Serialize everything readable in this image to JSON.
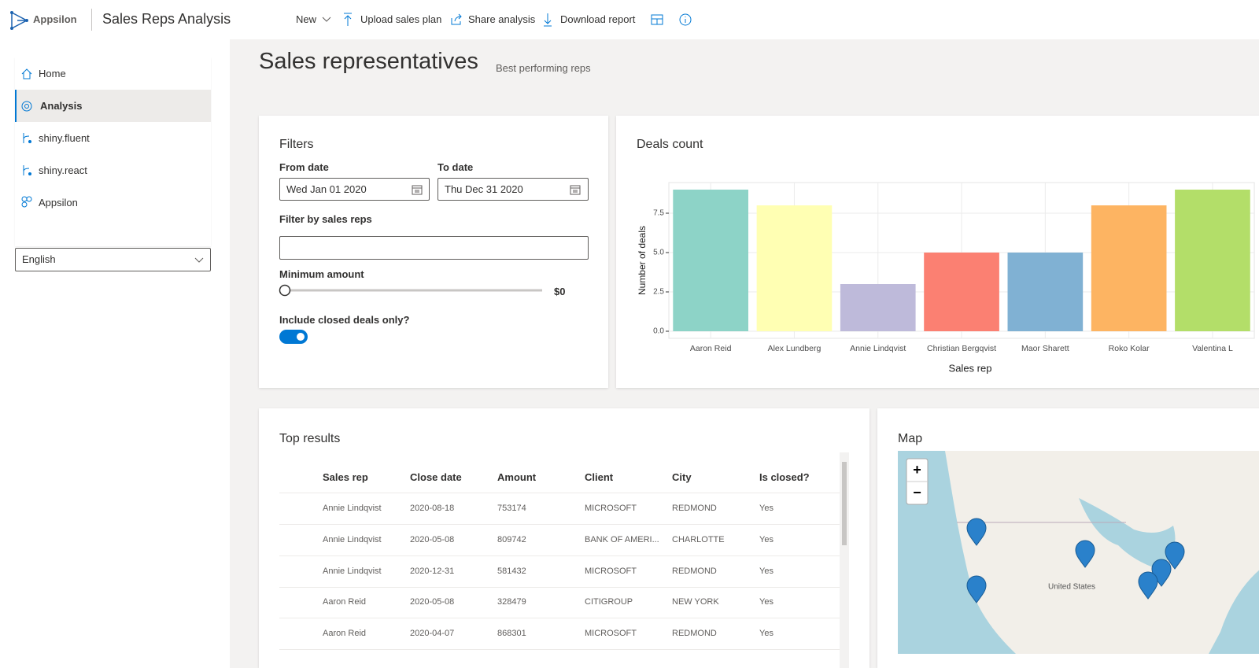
{
  "header": {
    "logo": "Appsilon",
    "title": "Sales Reps Analysis",
    "commands": [
      "New",
      "Upload sales plan",
      "Share analysis",
      "Download report"
    ]
  },
  "nav": {
    "items": [
      "Home",
      "Analysis",
      "shiny.fluent",
      "shiny.react",
      "Appsilon"
    ],
    "language": "English"
  },
  "page": {
    "title": "Sales representatives",
    "subtitle": "Best performing reps"
  },
  "filters": {
    "title": "Filters",
    "from_label": "From date",
    "from_value": "Wed Jan 01 2020",
    "to_label": "To date",
    "to_value": "Thu Dec 31 2020",
    "reps_label": "Filter by sales reps",
    "min_label": "Minimum amount",
    "min_value": "$0",
    "closed_label": "Include closed deals only?"
  },
  "chart_data": {
    "type": "bar",
    "title": "Deals count",
    "x_label": "Sales rep",
    "y_label": "Number of deals",
    "categories": [
      "Aaron Reid",
      "Alex Lundberg",
      "Annie Lindqvist",
      "Christian Bergqvist",
      "Maor Sharett",
      "Roko Kolar",
      "Valentina L"
    ],
    "values": [
      9,
      8,
      3,
      5,
      5,
      8,
      9
    ],
    "colors": [
      "#8dd3c7",
      "#ffffb3",
      "#bebada",
      "#fb8072",
      "#80b1d3",
      "#fdb462",
      "#b3de69"
    ],
    "ylim": [
      -0.45,
      9.45
    ],
    "yticks": [
      {
        "value": 0,
        "label": "0.0"
      },
      {
        "value": 2.5,
        "label": "2.5"
      },
      {
        "value": 5,
        "label": "5.0"
      },
      {
        "value": 7.5,
        "label": "7.5"
      }
    ],
    "grid": true
  },
  "table": {
    "title": "Top results",
    "columns": [
      "Sales rep",
      "Close date",
      "Amount",
      "Client",
      "City",
      "Is closed?"
    ],
    "rows": [
      [
        "Annie Lindqvist",
        "2020-08-18",
        "753174",
        "MICROSOFT",
        "REDMOND",
        "Yes"
      ],
      [
        "Annie Lindqvist",
        "2020-05-08",
        "809742",
        "BANK OF AMERI...",
        "CHARLOTTE",
        "Yes"
      ],
      [
        "Annie Lindqvist",
        "2020-12-31",
        "581432",
        "MICROSOFT",
        "REDMOND",
        "Yes"
      ],
      [
        "Aaron Reid",
        "2020-05-08",
        "328479",
        "CITIGROUP",
        "NEW YORK",
        "Yes"
      ],
      [
        "Aaron Reid",
        "2020-04-07",
        "868301",
        "MICROSOFT",
        "REDMOND",
        "Yes"
      ]
    ]
  },
  "map": {
    "title": "Map",
    "country": "United States",
    "zoom_in": "+",
    "zoom_out": "−"
  }
}
